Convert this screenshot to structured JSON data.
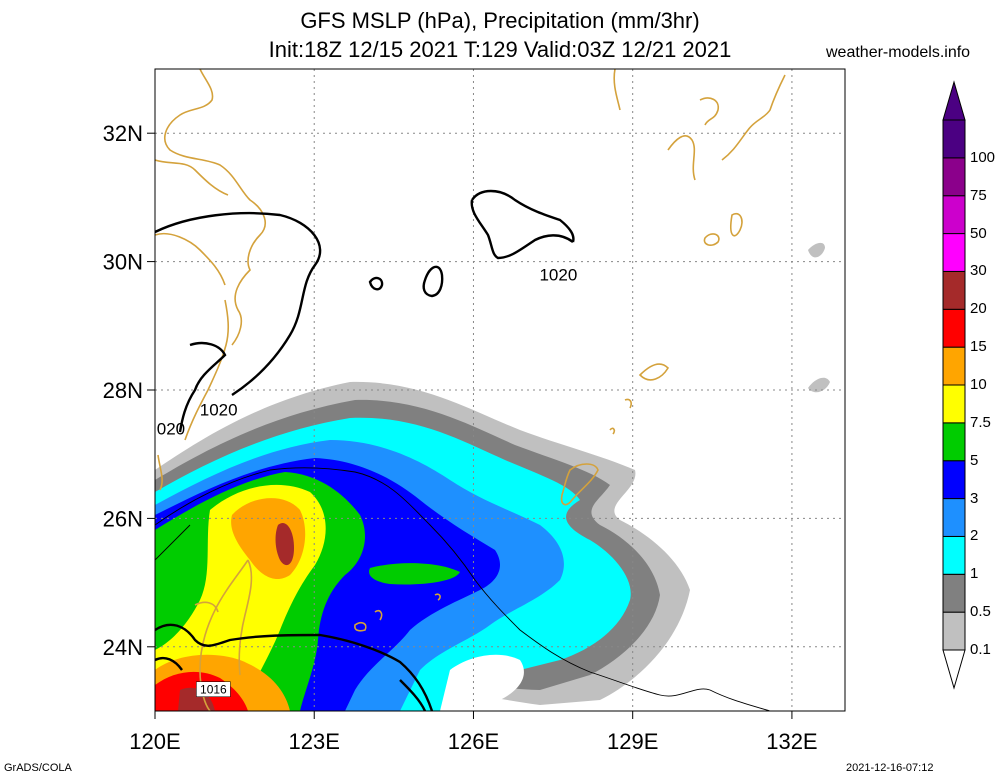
{
  "header": {
    "title_line1": "GFS MSLP (hPa), Precipitation (mm/3hr)",
    "title_line2": "Init:18Z 12/15 2021 T:129 Valid:03Z 12/21 2021",
    "site": "weather-models.info"
  },
  "footer": {
    "left": "GrADS/COLA",
    "right": "2021-12-16-07:12"
  },
  "map": {
    "lon_range": [
      120,
      133
    ],
    "lat_range": [
      23,
      33
    ],
    "lat_ticks": [
      {
        "value": 24,
        "label": "24N"
      },
      {
        "value": 26,
        "label": "26N"
      },
      {
        "value": 28,
        "label": "28N"
      },
      {
        "value": 30,
        "label": "30N"
      },
      {
        "value": 32,
        "label": "32N"
      }
    ],
    "lon_ticks": [
      {
        "value": 120,
        "label": "120E"
      },
      {
        "value": 123,
        "label": "123E"
      },
      {
        "value": 126,
        "label": "126E"
      },
      {
        "value": 129,
        "label": "129E"
      },
      {
        "value": 132,
        "label": "132E"
      }
    ],
    "isobar_labels": [
      {
        "text": "1020",
        "lon": 127.6,
        "lat": 29.8
      },
      {
        "text": "1020",
        "lon": 121.2,
        "lat": 27.7
      },
      {
        "text": "020",
        "lon": 120.3,
        "lat": 27.4
      },
      {
        "text": "1016",
        "lon": 121.1,
        "lat": 23.3
      }
    ]
  },
  "colorbar": {
    "levels": [
      {
        "label": "0.1",
        "color": "#c0c0c0"
      },
      {
        "label": "0.5",
        "color": "#808080"
      },
      {
        "label": "1",
        "color": "#00ffff"
      },
      {
        "label": "2",
        "color": "#1e90ff"
      },
      {
        "label": "3",
        "color": "#0000ff"
      },
      {
        "label": "5",
        "color": "#00cc00"
      },
      {
        "label": "7.5",
        "color": "#ffff00"
      },
      {
        "label": "10",
        "color": "#ffa500"
      },
      {
        "label": "15",
        "color": "#ff0000"
      },
      {
        "label": "20",
        "color": "#a52a2a"
      },
      {
        "label": "30",
        "color": "#ff00ff"
      },
      {
        "label": "50",
        "color": "#cc00cc"
      },
      {
        "label": "75",
        "color": "#8b008b"
      },
      {
        "label": "100",
        "color": "#4b0082"
      }
    ],
    "bottom_color": "#ffffff"
  },
  "colors": {
    "coast": "#d4a23c",
    "isobar": "#000000",
    "border": "#000000"
  }
}
